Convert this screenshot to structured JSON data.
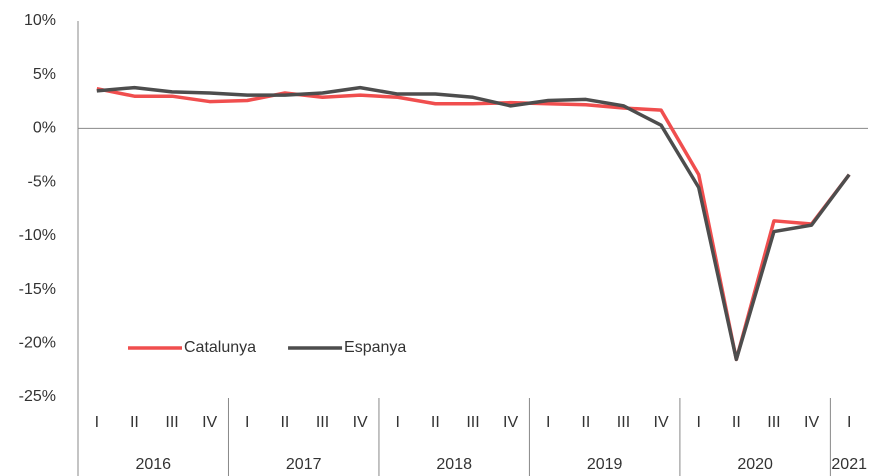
{
  "chart_data": {
    "type": "line",
    "categories": [
      "I",
      "II",
      "III",
      "IV",
      "I",
      "II",
      "III",
      "IV",
      "I",
      "II",
      "III",
      "IV",
      "I",
      "II",
      "III",
      "IV",
      "I",
      "II",
      "III",
      "IV",
      "I"
    ],
    "groups": [
      {
        "label": "2016",
        "span": 4
      },
      {
        "label": "2017",
        "span": 4
      },
      {
        "label": "2018",
        "span": 4
      },
      {
        "label": "2019",
        "span": 4
      },
      {
        "label": "2020",
        "span": 4
      },
      {
        "label": "2021",
        "span": 1
      }
    ],
    "series": [
      {
        "name": "Catalunya",
        "color": "#f04e4e",
        "values": [
          3.7,
          3.0,
          3.0,
          2.5,
          2.6,
          3.3,
          2.9,
          3.1,
          2.9,
          2.3,
          2.3,
          2.4,
          2.3,
          2.2,
          1.9,
          1.7,
          -4.3,
          -21.5,
          -8.6,
          -8.9,
          -4.3
        ]
      },
      {
        "name": "Espanya",
        "color": "#4d4d4d",
        "values": [
          3.5,
          3.8,
          3.4,
          3.3,
          3.1,
          3.1,
          3.3,
          3.8,
          3.2,
          3.2,
          2.9,
          2.1,
          2.6,
          2.7,
          2.1,
          0.3,
          -5.5,
          -21.5,
          -9.6,
          -9.0,
          -4.3
        ]
      }
    ],
    "ylim": [
      -25,
      10
    ],
    "yticks": [
      {
        "value": -25,
        "label": "-25%"
      },
      {
        "value": -20,
        "label": "-20%"
      },
      {
        "value": -15,
        "label": "-15%"
      },
      {
        "value": -10,
        "label": "-10%"
      },
      {
        "value": -5,
        "label": "-5%"
      },
      {
        "value": 0,
        "label": "0%"
      },
      {
        "value": 5,
        "label": "5%"
      },
      {
        "value": 10,
        "label": "10%"
      }
    ],
    "grid": false,
    "legend": "lower-left"
  }
}
